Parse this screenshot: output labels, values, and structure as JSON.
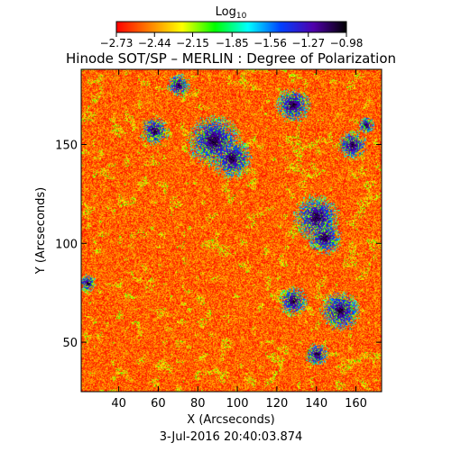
{
  "chart_data": {
    "type": "heatmap",
    "title": "Hinode SOT/SP – MERLIN : Degree of Polarization",
    "subtitle": "3-Jul-2016 20:40:03.874",
    "xlabel": "X (Arcseconds)",
    "ylabel": "Y (Arcseconds)",
    "xlim": [
      21,
      173
    ],
    "ylim": [
      25,
      188
    ],
    "x_ticks": [
      40,
      60,
      80,
      100,
      120,
      140,
      160
    ],
    "y_ticks": [
      50,
      100,
      150
    ],
    "colorbar": {
      "label_base": "Log",
      "label_sub": "10",
      "tick_labels": [
        "-2.73",
        "-2.44",
        "-2.15",
        "-1.85",
        "-1.56",
        "-1.27",
        "-0.98"
      ],
      "range": [
        -2.73,
        -0.98
      ],
      "colors": [
        "#ff0000",
        "#ff7f00",
        "#ffff00",
        "#00ff00",
        "#00ffff",
        "#0040ff",
        "#5000aa",
        "#000000"
      ]
    },
    "dominant_value_range": [
      -2.73,
      -2.3
    ],
    "high_polarization_regions": [
      {
        "x": 88,
        "y": 152,
        "r": 9
      },
      {
        "x": 97,
        "y": 143,
        "r": 7
      },
      {
        "x": 140,
        "y": 113,
        "r": 8
      },
      {
        "x": 144,
        "y": 103,
        "r": 6
      },
      {
        "x": 152,
        "y": 66,
        "r": 7
      },
      {
        "x": 128,
        "y": 71,
        "r": 5
      },
      {
        "x": 140,
        "y": 44,
        "r": 4
      },
      {
        "x": 58,
        "y": 157,
        "r": 5
      },
      {
        "x": 128,
        "y": 170,
        "r": 6
      },
      {
        "x": 158,
        "y": 150,
        "r": 5
      },
      {
        "x": 70,
        "y": 180,
        "r": 4
      },
      {
        "x": 24,
        "y": 80,
        "r": 3
      },
      {
        "x": 165,
        "y": 160,
        "r": 3
      }
    ]
  }
}
